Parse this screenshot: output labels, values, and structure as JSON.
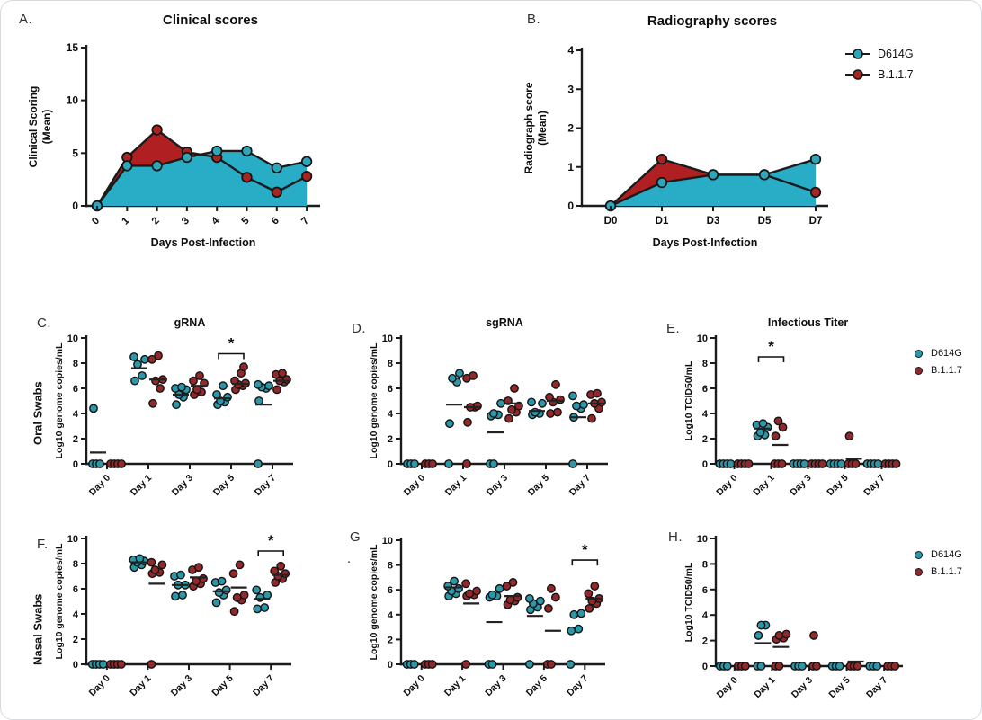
{
  "figure": {
    "row_labels": [
      {
        "text": "Oral Swabs"
      },
      {
        "text": "Nasal Swabs"
      }
    ]
  },
  "colors": {
    "teal_fill": "#29ACC6",
    "teal_marker": "#2EA6BA",
    "teal_scatter": "#2B97A8",
    "red_fill": "#B01F22",
    "red_marker": "#A62421",
    "red_scatter": "#92282A",
    "ink": "#1b1b1b",
    "mean_bar": "#222222"
  },
  "legend": {
    "items": [
      {
        "label": "D614G",
        "color_key": "teal_marker"
      },
      {
        "label": "B.1.1.7",
        "color_key": "red_marker"
      }
    ]
  },
  "chart_data": [
    {
      "id": "A",
      "letter": "A.",
      "type": "area",
      "title": "Clinical scores",
      "ylabel_lines": [
        "Clinical Scoring",
        "(Mean)"
      ],
      "xlabel": "Days Post-Infection",
      "ylim": [
        0,
        15
      ],
      "yticks": [
        0,
        5,
        10,
        15
      ],
      "categories": [
        "0",
        "1",
        "2",
        "3",
        "4",
        "5",
        "6",
        "7"
      ],
      "rotate_xticks": true,
      "series": [
        {
          "name": "D614G",
          "values": [
            0,
            3.8,
            3.8,
            4.6,
            5.2,
            5.2,
            3.6,
            4.2
          ]
        },
        {
          "name": "B.1.1.7",
          "values": [
            0,
            4.6,
            7.2,
            5.1,
            4.6,
            2.7,
            1.3,
            2.8
          ]
        }
      ]
    },
    {
      "id": "B",
      "letter": "B.",
      "type": "area",
      "title": "Radiography scores",
      "ylabel_lines": [
        "Radiograph score",
        "(Mean)"
      ],
      "xlabel": "Days Post-Infection",
      "ylim": [
        0,
        4
      ],
      "yticks": [
        0,
        1,
        2,
        3,
        4
      ],
      "categories": [
        "D0",
        "D1",
        "D3",
        "D5",
        "D7"
      ],
      "rotate_xticks": false,
      "series": [
        {
          "name": "D614G",
          "values": [
            0,
            0.6,
            0.8,
            0.8,
            1.2
          ]
        },
        {
          "name": "B.1.1.7",
          "values": [
            0,
            1.2,
            0.8,
            0.8,
            0.35
          ]
        }
      ]
    },
    {
      "id": "C",
      "letter": "C.",
      "type": "scatter",
      "title": "gRNA",
      "ylabel": "Log10 genome copies/mL",
      "ylim": [
        0,
        10
      ],
      "yticks": [
        0,
        2,
        4,
        6,
        8,
        10
      ],
      "categories": [
        "Day 0",
        "Day 1",
        "Day 3",
        "Day 5",
        "Day 7"
      ],
      "sig": {
        "day_index": 3,
        "label": "*",
        "y": 8.75
      },
      "series": [
        {
          "name": "D614G",
          "points": [
            [
              0,
              0,
              0,
              4.4
            ],
            [
              6.6,
              7.0,
              7.9,
              8.3,
              8.5
            ],
            [
              4.7,
              5.3,
              5.5,
              5.9,
              6.0,
              6.1
            ],
            [
              4.7,
              4.9,
              5.0,
              5.3,
              5.5,
              6.2
            ],
            [
              0,
              5.0,
              6.0,
              6.1,
              6.2,
              6.3
            ]
          ],
          "means": [
            0.9,
            7.6,
            5.5,
            5.2,
            4.7
          ]
        },
        {
          "name": "B.1.1.7",
          "points": [
            [
              0,
              0,
              0,
              0
            ],
            [
              4.8,
              6.0,
              6.6,
              6.7,
              8.3,
              8.6
            ],
            [
              5.5,
              5.7,
              5.9,
              6.4,
              6.6,
              7.0
            ],
            [
              5.9,
              6.2,
              6.3,
              6.4,
              6.6,
              7.2,
              7.7
            ],
            [
              5.9,
              6.5,
              6.6,
              6.7,
              7.1,
              7.2
            ]
          ],
          "means": [
            null,
            6.7,
            6.2,
            6.35,
            6.6
          ]
        }
      ]
    },
    {
      "id": "D",
      "letter": "D.",
      "type": "scatter",
      "title": "sgRNA",
      "ylabel": "Log10 genome copies/mL",
      "ylim": [
        0,
        10
      ],
      "yticks": [
        0,
        2,
        4,
        6,
        8,
        10
      ],
      "categories": [
        "Day 0",
        "Day 1",
        "Day 3",
        "Day 5",
        "Day 7"
      ],
      "sig": null,
      "series": [
        {
          "name": "D614G",
          "points": [
            [
              0,
              0,
              0
            ],
            [
              0,
              3.2,
              6.5,
              6.8,
              7.2
            ],
            [
              0,
              0,
              3.8,
              3.9,
              4.0,
              4.8
            ],
            [
              3.9,
              4.0,
              4.1,
              4.8,
              4.9
            ],
            [
              0,
              3.7,
              4.4,
              4.6,
              4.7,
              5.4
            ]
          ],
          "means": [
            null,
            4.7,
            2.5,
            4.2,
            3.7
          ]
        },
        {
          "name": "B.1.1.7",
          "points": [
            [
              0,
              0,
              0
            ],
            [
              0,
              3.3,
              4.5,
              4.5,
              4.6,
              6.8,
              7.0
            ],
            [
              3.6,
              4.1,
              4.3,
              4.6,
              5.0,
              6.0
            ],
            [
              4.0,
              4.1,
              4.9,
              5.1,
              5.3,
              6.3
            ],
            [
              3.6,
              4.4,
              4.8,
              4.9,
              5.5,
              5.6
            ]
          ],
          "means": [
            null,
            4.5,
            4.8,
            5.0,
            4.8
          ]
        }
      ]
    },
    {
      "id": "E",
      "letter": "E.",
      "type": "scatter",
      "title": "Infectious Titer",
      "ylabel": "Log10 TCID50/mL",
      "ylim": [
        0,
        10
      ],
      "yticks": [
        0,
        2,
        4,
        6,
        8,
        10
      ],
      "categories": [
        "Day 0",
        "Day 1",
        "Day 3",
        "Day 5",
        "Day 7"
      ],
      "sig": {
        "day_index": 1,
        "label": "*",
        "y": 8.5
      },
      "series": [
        {
          "name": "D614G",
          "points": [
            [
              0,
              0,
              0,
              0
            ],
            [
              2.2,
              2.3,
              2.5,
              2.9,
              3.1,
              3.2
            ],
            [
              0,
              0,
              0,
              0
            ],
            [
              0,
              0,
              0,
              0
            ],
            [
              0,
              0,
              0,
              0
            ]
          ],
          "means": [
            null,
            2.8,
            null,
            null,
            null
          ]
        },
        {
          "name": "B.1.1.7",
          "points": [
            [
              0,
              0,
              0,
              0
            ],
            [
              0,
              0,
              0,
              2.2,
              2.9,
              3.4
            ],
            [
              0,
              0,
              0,
              0
            ],
            [
              0,
              0,
              0,
              2.2
            ],
            [
              0,
              0,
              0,
              0
            ]
          ],
          "means": [
            null,
            1.5,
            null,
            0.4,
            null
          ]
        }
      ]
    },
    {
      "id": "F",
      "letter": "F.",
      "type": "scatter",
      "title": "",
      "ylabel": "Log10 genome copies/mL",
      "ylim": [
        0,
        10
      ],
      "yticks": [
        0,
        2,
        4,
        6,
        8,
        10
      ],
      "categories": [
        "Day 0",
        "Day 1",
        "Day 3",
        "Day 5",
        "Day 7"
      ],
      "sig": {
        "day_index": 4,
        "label": "*",
        "y": 9.0
      },
      "series": [
        {
          "name": "D614G",
          "points": [
            [
              0,
              0,
              0,
              0
            ],
            [
              7.7,
              7.9,
              8.1,
              8.2,
              8.3,
              8.4
            ],
            [
              5.4,
              5.5,
              6.3,
              6.3,
              7.0,
              7.1
            ],
            [
              4.9,
              5.5,
              5.7,
              5.9,
              6.5,
              6.6
            ],
            [
              4.4,
              4.5,
              5.3,
              5.5,
              5.9
            ]
          ],
          "means": [
            null,
            8.1,
            6.3,
            5.8,
            5.2
          ]
        },
        {
          "name": "B.1.1.7",
          "points": [
            [
              0,
              0,
              0,
              0
            ],
            [
              0,
              7.2,
              7.3,
              7.5,
              7.9,
              8.1
            ],
            [
              6.2,
              6.4,
              6.6,
              6.8,
              7.5,
              7.7
            ],
            [
              4.2,
              5.1,
              5.3,
              5.5,
              7.2,
              7.9
            ],
            [
              6.5,
              6.8,
              7.0,
              7.2,
              7.4,
              7.8
            ]
          ],
          "means": [
            null,
            6.4,
            6.9,
            6.1,
            7.1
          ]
        }
      ]
    },
    {
      "id": "G",
      "letter": "G",
      "letter2": ".",
      "type": "scatter",
      "title": "",
      "ylabel": "Log10 genome copies/mL",
      "ylim": [
        0,
        10
      ],
      "yticks": [
        0,
        2,
        4,
        6,
        8,
        10
      ],
      "categories": [
        "Day 0",
        "Day 1",
        "Day 3",
        "Day 5",
        "Day 7"
      ],
      "sig": {
        "day_index": 4,
        "label": "*",
        "y": 8.4
      },
      "series": [
        {
          "name": "D614G",
          "points": [
            [
              0,
              0,
              0
            ],
            [
              5.5,
              5.7,
              5.9,
              6.1,
              6.3,
              6.7
            ],
            [
              0,
              0,
              5.4,
              5.5,
              5.6,
              6.1
            ],
            [
              0,
              4.4,
              4.6,
              4.9,
              5.1,
              5.3
            ],
            [
              0,
              2.7,
              2.85,
              4.0,
              4.1
            ]
          ],
          "means": [
            null,
            6.2,
            3.4,
            3.9,
            null
          ]
        },
        {
          "name": "B.1.1.7",
          "points": [
            [
              0,
              0,
              0
            ],
            [
              0,
              5.5,
              5.6,
              5.7,
              5.9,
              6.5
            ],
            [
              4.8,
              5.1,
              5.2,
              5.4,
              6.3,
              6.6
            ],
            [
              0,
              0,
              4.5,
              5.4,
              6.1
            ],
            [
              4.5,
              4.9,
              5.1,
              5.3,
              5.7,
              6.3
            ]
          ],
          "means": [
            null,
            4.9,
            5.5,
            2.7,
            5.3
          ]
        }
      ]
    },
    {
      "id": "H",
      "letter": "H.",
      "type": "scatter",
      "title": "",
      "ylabel": "Log10 TCID50/mL",
      "ylim": [
        0,
        10
      ],
      "yticks": [
        0,
        2,
        4,
        6,
        8,
        10
      ],
      "categories": [
        "Day 0",
        "Day 1",
        "Day 3",
        "Day 5",
        "Day 7"
      ],
      "sig": null,
      "series": [
        {
          "name": "D614G",
          "points": [
            [
              0,
              0,
              0
            ],
            [
              0,
              0,
              2.4,
              3.2,
              3.2
            ],
            [
              0,
              0,
              0
            ],
            [
              0,
              0,
              0
            ],
            [
              0,
              0,
              0
            ]
          ],
          "means": [
            null,
            1.8,
            null,
            null,
            null
          ]
        },
        {
          "name": "B.1.1.7",
          "points": [
            [
              0,
              0,
              0
            ],
            [
              0,
              0,
              2.1,
              2.2,
              2.4,
              2.5
            ],
            [
              0,
              0,
              2.4
            ],
            [
              0,
              0,
              0
            ],
            [
              0,
              0,
              0
            ]
          ],
          "means": [
            null,
            1.5,
            null,
            0.35,
            null
          ]
        }
      ]
    }
  ]
}
